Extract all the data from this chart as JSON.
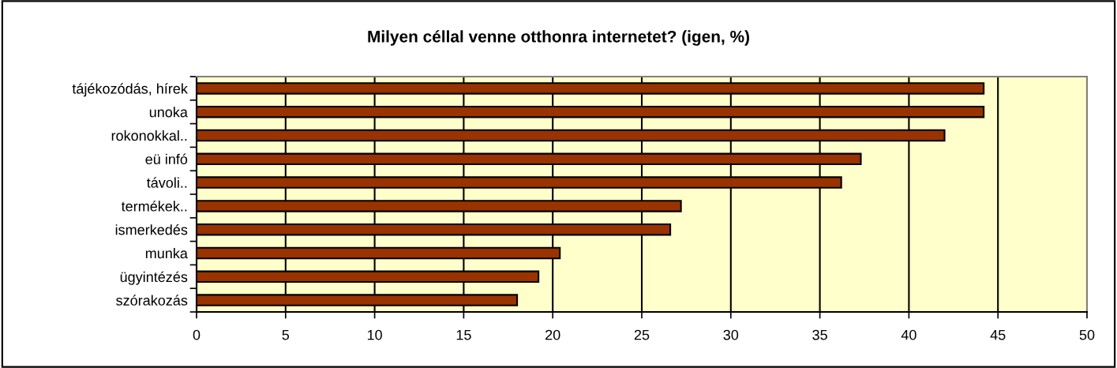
{
  "chart_data": {
    "type": "bar",
    "orientation": "horizontal",
    "title": "Milyen céllal venne otthonra internetet? (igen, %)",
    "categories": [
      "tájékozódás, hírek",
      "unoka",
      "rokonokkal..",
      "eü infó",
      "távoli..",
      "termékek..",
      "ismerkedés",
      "munka",
      "ügyintézés",
      "szórakozás"
    ],
    "values": [
      44.2,
      44.2,
      42.0,
      37.3,
      36.2,
      27.2,
      26.6,
      20.4,
      19.2,
      18.0
    ],
    "color": "#993300",
    "xlim": [
      0,
      50
    ],
    "xticks": [
      0,
      5,
      10,
      15,
      20,
      25,
      30,
      35,
      40,
      45,
      50
    ],
    "grid": "x",
    "legend": false
  }
}
